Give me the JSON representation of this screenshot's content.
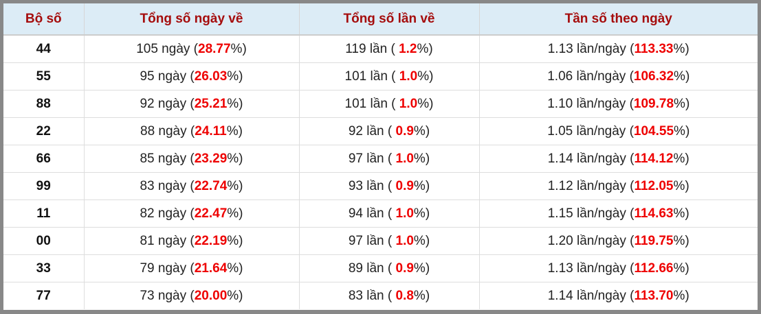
{
  "table": {
    "header": [
      "Bộ số",
      "Tổng số ngày về",
      "Tổng số lần về",
      "Tần số theo ngày"
    ],
    "rows": [
      [
        "44",
        [
          "105 ngày (",
          "28.77",
          "%)"
        ],
        [
          "119 lần ( ",
          "1.2",
          "%)"
        ],
        [
          "1.13 lần/ngày (",
          "113.33",
          "%)"
        ]
      ],
      [
        "55",
        [
          "95 ngày (",
          "26.03",
          "%)"
        ],
        [
          "101 lần ( ",
          "1.0",
          "%)"
        ],
        [
          "1.06 lần/ngày (",
          "106.32",
          "%)"
        ]
      ],
      [
        "88",
        [
          "92 ngày (",
          "25.21",
          "%)"
        ],
        [
          "101 lần ( ",
          "1.0",
          "%)"
        ],
        [
          "1.10 lần/ngày (",
          "109.78",
          "%)"
        ]
      ],
      [
        "22",
        [
          "88 ngày (",
          "24.11",
          "%)"
        ],
        [
          "92 lần ( ",
          "0.9",
          "%)"
        ],
        [
          "1.05 lần/ngày (",
          "104.55",
          "%)"
        ]
      ],
      [
        "66",
        [
          "85 ngày (",
          "23.29",
          "%)"
        ],
        [
          "97 lần ( ",
          "1.0",
          "%)"
        ],
        [
          "1.14 lần/ngày (",
          "114.12",
          "%)"
        ]
      ],
      [
        "99",
        [
          "83 ngày (",
          "22.74",
          "%)"
        ],
        [
          "93 lần ( ",
          "0.9",
          "%)"
        ],
        [
          "1.12 lần/ngày (",
          "112.05",
          "%)"
        ]
      ],
      [
        "11",
        [
          "82 ngày (",
          "22.47",
          "%)"
        ],
        [
          "94 lần ( ",
          "1.0",
          "%)"
        ],
        [
          "1.15 lần/ngày (",
          "114.63",
          "%)"
        ]
      ],
      [
        "00",
        [
          "81 ngày (",
          "22.19",
          "%)"
        ],
        [
          "97 lần ( ",
          "1.0",
          "%)"
        ],
        [
          "1.20 lần/ngày (",
          "119.75",
          "%)"
        ]
      ],
      [
        "33",
        [
          "79 ngày (",
          "21.64",
          "%)"
        ],
        [
          "89 lần ( ",
          "0.9",
          "%)"
        ],
        [
          "1.13 lần/ngày (",
          "112.66",
          "%)"
        ]
      ],
      [
        "77",
        [
          "73 ngày (",
          "20.00",
          "%)"
        ],
        [
          "83 lần ( ",
          "0.8",
          "%)"
        ],
        [
          "1.14 lần/ngày (",
          "113.70",
          "%)"
        ]
      ]
    ]
  }
}
